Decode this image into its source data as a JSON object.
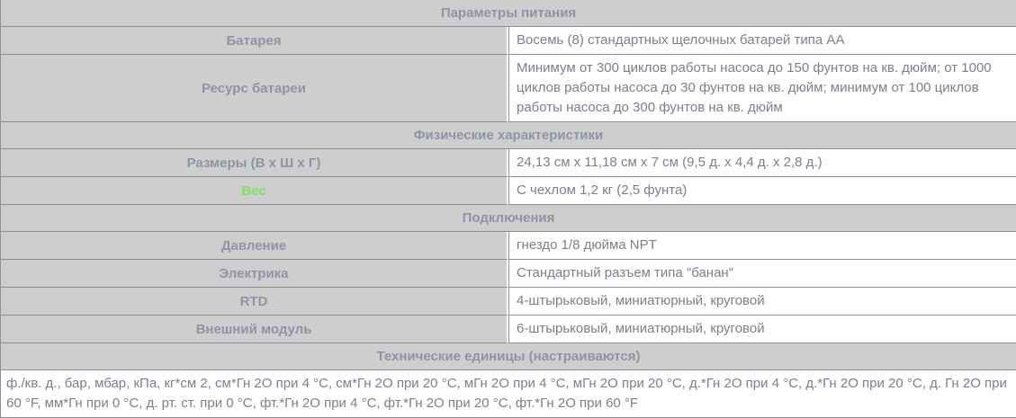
{
  "colors": {
    "section_bg": "#cecece",
    "border": "#8b909b",
    "heading_text": "#8d94a5",
    "value_text": "#7a818e",
    "green": "#7be55a",
    "cell_bg": "#ffffff"
  },
  "table": {
    "sections": [
      {
        "header": "Параметры питания",
        "rows": [
          {
            "label": "Батарея",
            "value": "Восемь (8) стандартных щелочных батарей типа AA"
          },
          {
            "label": "Ресурс батареи",
            "value": "Минимум от 300 циклов работы насоса до 150 фунтов на кв. дюйм; от 1000 циклов работы насоса до 30 фунтов на кв. дюйм; минимум от 100 циклов работы насоса до 300 фунтов на кв. дюйм"
          }
        ]
      },
      {
        "header": "Физические характеристики",
        "rows": [
          {
            "label": "Размеры (В х Ш х Г)",
            "value": "24,13 см х 11,18 см х 7 см (9,5 д. х 4,4 д. х 2,8 д.)"
          },
          {
            "label": "Вес",
            "label_color": "green",
            "value": "С чехлом 1,2 кг (2,5 фунта)"
          }
        ]
      },
      {
        "header": "Подключения",
        "rows": [
          {
            "label": "Давление",
            "value": "гнездо 1/8 дюйма NPT"
          },
          {
            "label": "Электрика",
            "value": "Стандартный разъем типа \"банан\""
          },
          {
            "label": "RTD",
            "value": "4-штырьковый, миниатюрный, круговой"
          },
          {
            "label": "Внешний модуль",
            "value": "6-штырьковый, миниатюрный, круговой"
          }
        ]
      },
      {
        "header": "Технические единицы (настраиваются)",
        "rows": [],
        "full_width_value": "ф./кв. д., бар, мбар, кПа, кг*см 2, см*Гн 2О при 4 °C, см*Гн 2О при 20 °C, мГн 2О при 4 °C, мГн 2О при 20 °C, д.*Гн 2О при 4 °C, д.*Гн 2О при 20 °C, д. Гн 2О при 60 °F, мм*Гн при 0 °C, д. рт. ст. при 0 °C, фт.*Гн 2О при 4 °C, фт.*Гн 2О при 20 °C, фт.*Гн 2О при 60 °F"
      }
    ]
  }
}
